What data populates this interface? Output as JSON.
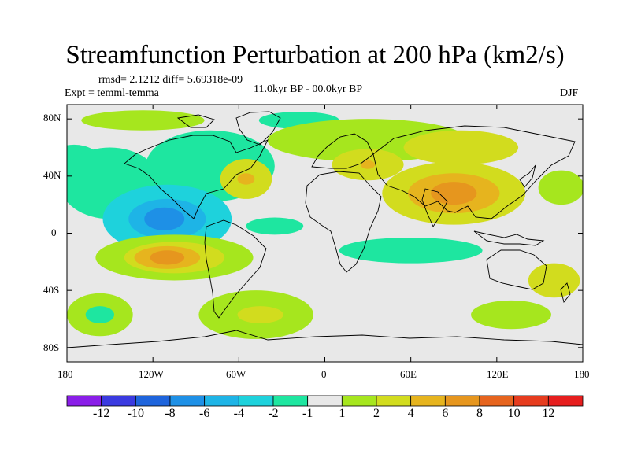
{
  "title": "Streamfunction Perturbation at 200 hPa (km2/s)",
  "stats": "rmsd= 2.1212 diff= 5.69318e-09",
  "experiment": "Expt = temml-temma",
  "period": "11.0kyr BP - 00.0kyr BP",
  "season": "DJF",
  "lat_ticks": [
    "80N",
    "40N",
    "0",
    "40S",
    "80S"
  ],
  "lon_ticks": [
    "180",
    "120W",
    "60W",
    "0",
    "60E",
    "120E",
    "180"
  ],
  "colorbar": {
    "labels": [
      "-12",
      "-10",
      "-8",
      "-6",
      "-4",
      "-2",
      "-1",
      "1",
      "2",
      "4",
      "6",
      "8",
      "10",
      "12"
    ],
    "colors": [
      "#8a1ee8",
      "#3a3ae0",
      "#1e64dc",
      "#1e90e6",
      "#1eb4e6",
      "#1ed2dc",
      "#1ee6a0",
      "#e8e8e8",
      "#a6e61e",
      "#d2dc1e",
      "#e6b41e",
      "#e6961e",
      "#e6641e",
      "#e63c1e",
      "#e61e1e"
    ]
  },
  "map_data": {
    "type": "contour-map",
    "projection": "cylindrical-equidistant",
    "lon_range": [
      -180,
      180
    ],
    "lat_range": [
      -90,
      90
    ],
    "features": [
      {
        "name": "Arctic band",
        "lon": -127,
        "lat": 79,
        "rx": 43,
        "ry": 7,
        "level": 1
      },
      {
        "name": "NE Atlantic",
        "lon": -18,
        "lat": 79,
        "rx": 28,
        "ry": 6,
        "level": -1
      },
      {
        "name": "N Asia",
        "lon": 30,
        "lat": 65,
        "rx": 70,
        "ry": 15,
        "level": 1
      },
      {
        "name": "Mongolia",
        "lon": 95,
        "lat": 60,
        "rx": 40,
        "ry": 12,
        "level": 2
      },
      {
        "name": "NW Pacific",
        "lon": -175,
        "lat": 51,
        "rx": 18,
        "ry": 11,
        "level": -1
      },
      {
        "name": "N Pacific",
        "lon": -150,
        "lat": 35,
        "rx": 35,
        "ry": 25,
        "level": -1
      },
      {
        "name": "N America",
        "lon": -80,
        "lat": 47,
        "rx": 45,
        "ry": 25,
        "level": -1
      },
      {
        "name": "W Atlantic",
        "lon": -55,
        "lat": 38,
        "rx": 18,
        "ry": 14,
        "level": 2
      },
      {
        "name": "W Atlantic core",
        "lon": -55,
        "lat": 38,
        "rx": 6,
        "ry": 4,
        "level": 4
      },
      {
        "name": "Middle East",
        "lon": 30,
        "lat": 48,
        "rx": 25,
        "ry": 11,
        "level": 2
      },
      {
        "name": "Middle East core",
        "lon": 30,
        "lat": 48,
        "rx": 5,
        "ry": 3,
        "level": 4
      },
      {
        "name": "S Asia",
        "lon": 90,
        "lat": 28,
        "rx": 50,
        "ry": 22,
        "level": 2
      },
      {
        "name": "S Asia mid",
        "lon": 90,
        "lat": 28,
        "rx": 32,
        "ry": 14,
        "level": 4
      },
      {
        "name": "S Asia core",
        "lon": 90,
        "lat": 28,
        "rx": 16,
        "ry": 8,
        "level": 6
      },
      {
        "name": "N Pacific E",
        "lon": 165,
        "lat": 32,
        "rx": 16,
        "ry": 12,
        "level": 1
      },
      {
        "name": "Tropical E Pacific",
        "lon": -110,
        "lat": 10,
        "rx": 45,
        "ry": 24,
        "level": -2
      },
      {
        "name": "Tropical E Pacific mid",
        "lon": -110,
        "lat": 10,
        "rx": 27,
        "ry": 14,
        "level": -4
      },
      {
        "name": "Tropical E Pacific core",
        "lon": -112,
        "lat": 10,
        "rx": 14,
        "ry": 8,
        "level": -6
      },
      {
        "name": "Tropical Atlantic",
        "lon": -35,
        "lat": 5,
        "rx": 20,
        "ry": 6,
        "level": -1
      },
      {
        "name": "Tropical Indian",
        "lon": 60,
        "lat": -12,
        "rx": 50,
        "ry": 9,
        "level": -1
      },
      {
        "name": "S Pacific",
        "lon": -105,
        "lat": -17,
        "rx": 55,
        "ry": 16,
        "level": 1
      },
      {
        "name": "S Pacific mid",
        "lon": -105,
        "lat": -17,
        "rx": 35,
        "ry": 11,
        "level": 2
      },
      {
        "name": "S Pacific mid2",
        "lon": -110,
        "lat": -17,
        "rx": 23,
        "ry": 8,
        "level": 4
      },
      {
        "name": "S Pacific core",
        "lon": -110,
        "lat": -17,
        "rx": 12,
        "ry": 5,
        "level": 6
      },
      {
        "name": "S Atlantic",
        "lon": -48,
        "lat": -57,
        "rx": 40,
        "ry": 17,
        "level": 1
      },
      {
        "name": "S Atlantic core",
        "lon": -45,
        "lat": -57,
        "rx": 16,
        "ry": 6,
        "level": 2
      },
      {
        "name": "S Ocean W",
        "lon": -157,
        "lat": -57,
        "rx": 23,
        "ry": 15,
        "level": 1
      },
      {
        "name": "S Ocean W core",
        "lon": -157,
        "lat": -57,
        "rx": 10,
        "ry": 6,
        "level": -1
      },
      {
        "name": "Australia SE",
        "lon": 160,
        "lat": -33,
        "rx": 18,
        "ry": 12,
        "level": 2
      },
      {
        "name": "S Indian",
        "lon": 130,
        "lat": -57,
        "rx": 28,
        "ry": 10,
        "level": 1
      }
    ]
  }
}
